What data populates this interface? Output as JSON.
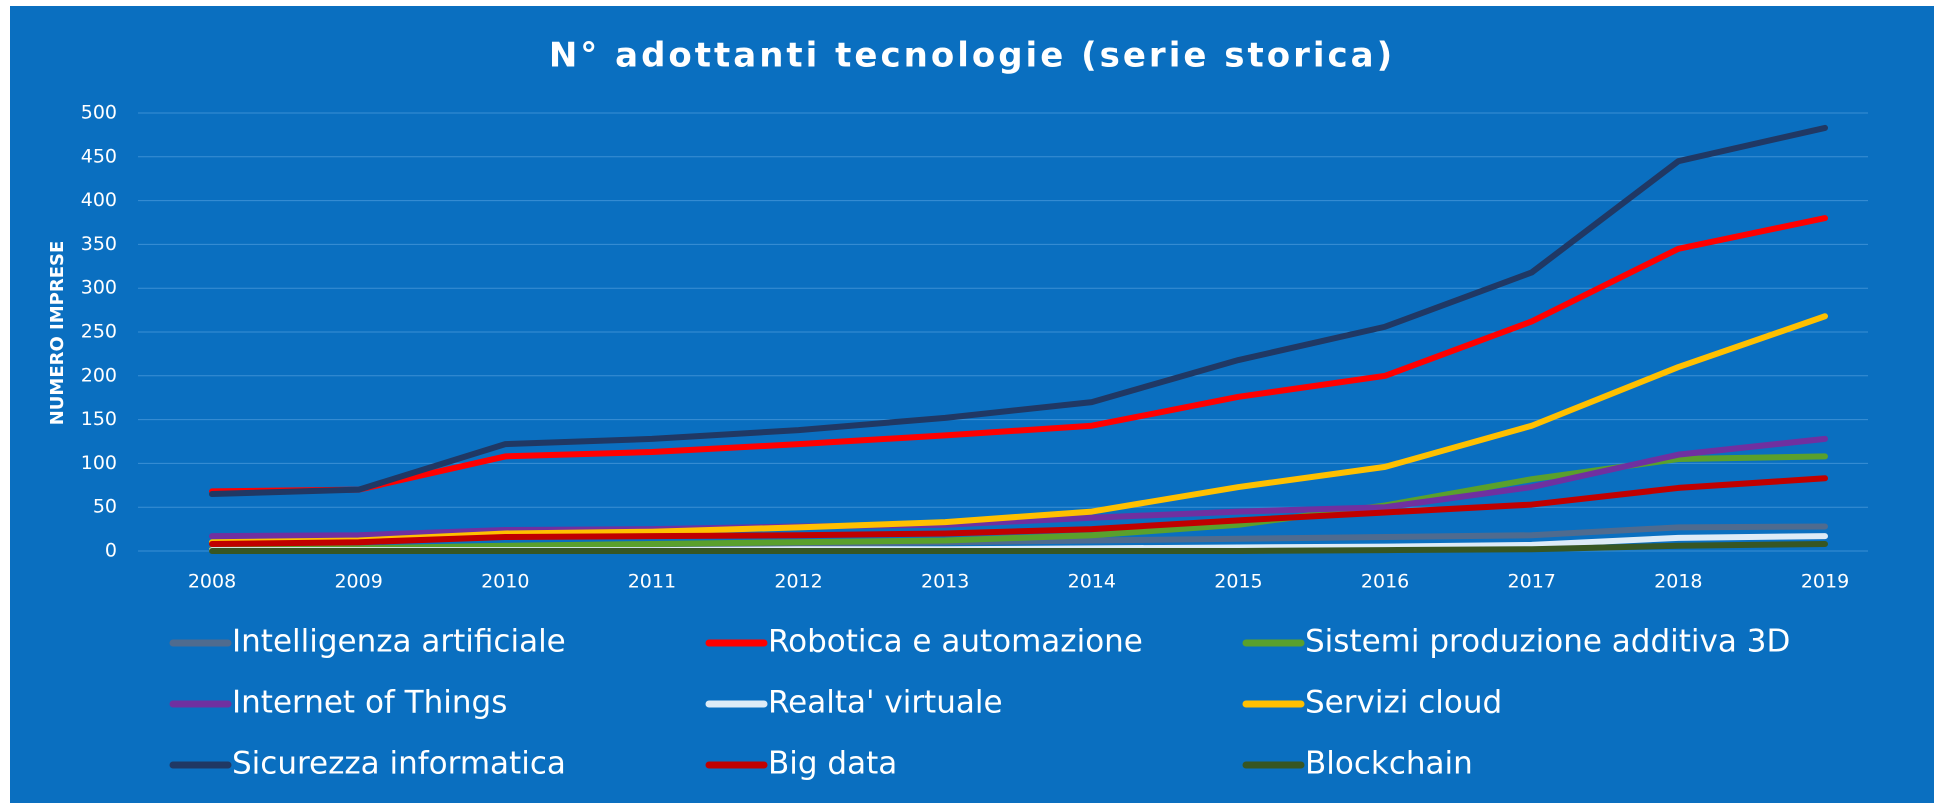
{
  "chart_data": {
    "type": "line",
    "title": "N° adottanti tecnologie (serie storica)",
    "y_label": "NUMERO IMPRESE",
    "categories": [
      "2008",
      "2009",
      "2010",
      "2011",
      "2012",
      "2013",
      "2014",
      "2015",
      "2016",
      "2017",
      "2018",
      "2019"
    ],
    "ylim": [
      0,
      500
    ],
    "yticks": [
      0,
      50,
      100,
      150,
      200,
      250,
      300,
      350,
      400,
      450,
      500
    ],
    "grid": true,
    "legend": "bottom",
    "series": [
      {
        "name": "Intelligenza artificiale",
        "color": "#4f6b8f",
        "values": [
          3,
          3,
          5,
          6,
          8,
          10,
          12,
          14,
          16,
          18,
          27,
          28
        ]
      },
      {
        "name": "Robotica e automazione",
        "color": "#ff0000",
        "values": [
          68,
          70,
          108,
          113,
          122,
          132,
          143,
          176,
          200,
          262,
          345,
          380
        ]
      },
      {
        "name": "Sistemi produzione additiva 3D",
        "color": "#5aa02c",
        "values": [
          2,
          3,
          6,
          8,
          10,
          12,
          18,
          30,
          52,
          82,
          105,
          108
        ]
      },
      {
        "name": "Internet of Things",
        "color": "#7030a0",
        "values": [
          17,
          18,
          24,
          25,
          28,
          30,
          38,
          45,
          50,
          73,
          110,
          128
        ]
      },
      {
        "name": "Realta' virtuale",
        "color": "#ddebf7",
        "values": [
          1,
          1,
          1,
          1,
          2,
          2,
          3,
          4,
          5,
          7,
          15,
          17
        ]
      },
      {
        "name": "Servizi cloud",
        "color": "#ffc000",
        "values": [
          10,
          12,
          20,
          22,
          27,
          33,
          45,
          73,
          96,
          143,
          210,
          268
        ]
      },
      {
        "name": "Sicurezza informatica",
        "color": "#203864",
        "values": [
          65,
          70,
          122,
          128,
          138,
          152,
          170,
          218,
          256,
          318,
          445,
          483
        ]
      },
      {
        "name": "Big data",
        "color": "#c00000",
        "values": [
          8,
          10,
          16,
          17,
          18,
          20,
          25,
          35,
          44,
          53,
          72,
          83
        ]
      },
      {
        "name": "Blockchain",
        "color": "#375623",
        "values": [
          0,
          0,
          0,
          0,
          0,
          0,
          0,
          0,
          1,
          2,
          6,
          8
        ]
      }
    ]
  }
}
